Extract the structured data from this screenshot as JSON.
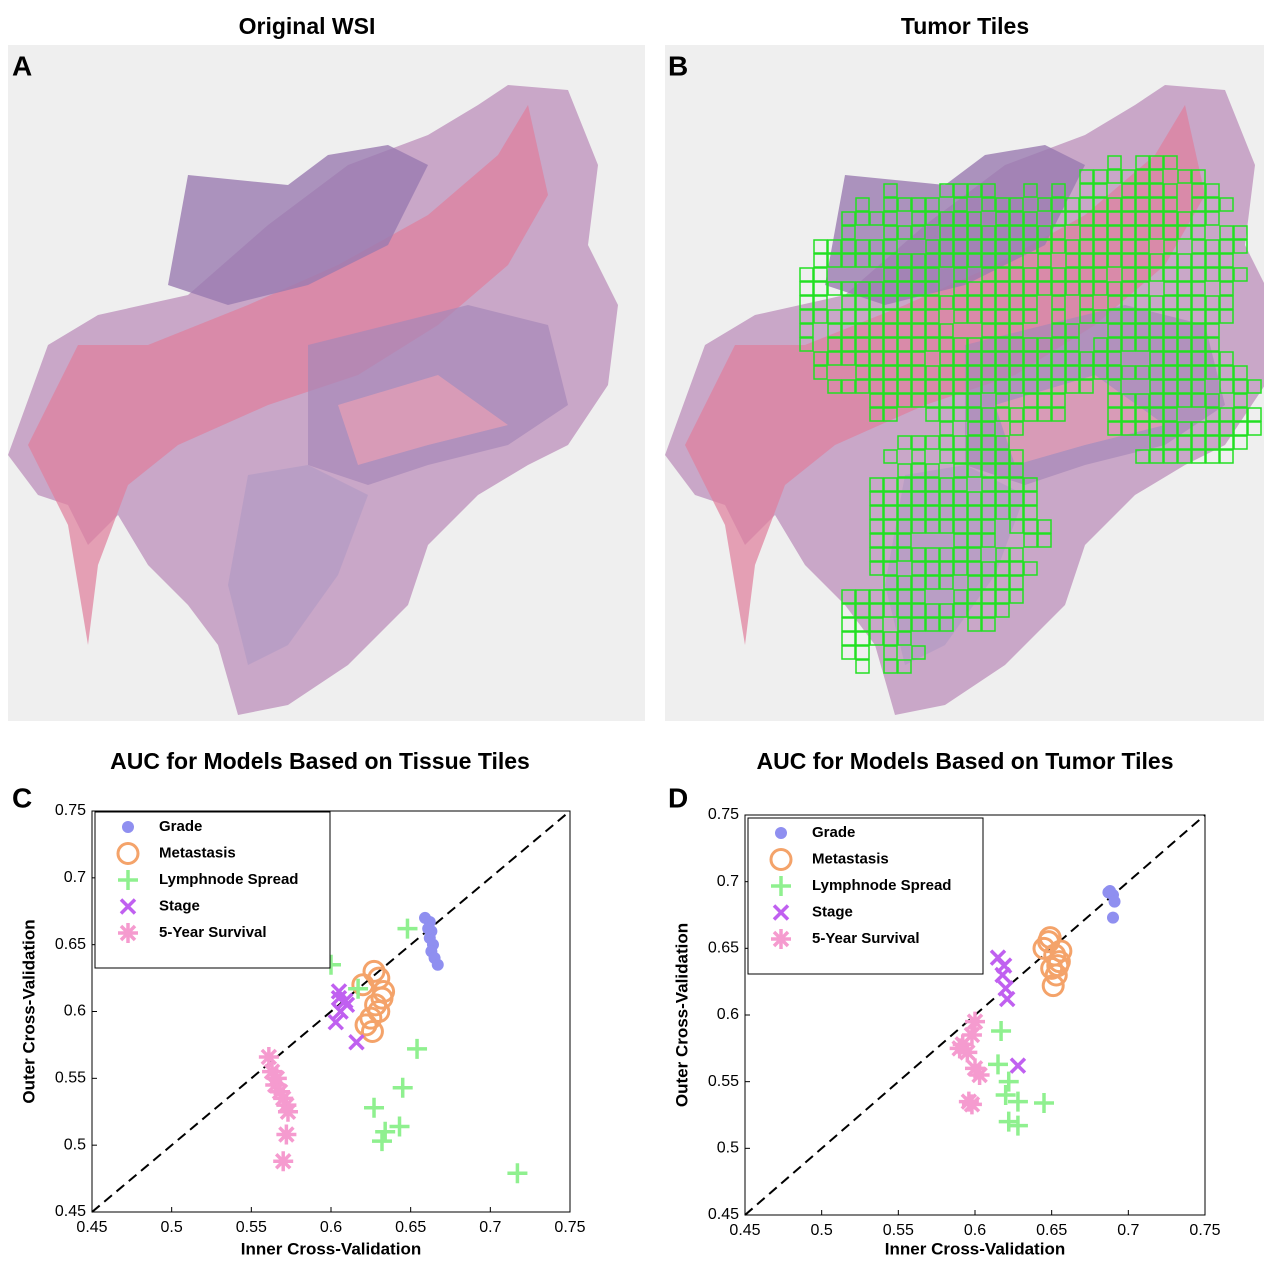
{
  "images": [
    {
      "label": "A",
      "title": "Original WSI"
    },
    {
      "label": "B",
      "title": "Tumor Tiles"
    }
  ],
  "chart_data": [
    {
      "type": "scatter",
      "panel_label": "C",
      "title": "AUC for Models Based on Tissue Tiles",
      "x_label": "Inner Cross-Validation",
      "y_label": "Outer Cross-Validation",
      "xlim": [
        0.45,
        0.75
      ],
      "ylim": [
        0.45,
        0.75
      ],
      "xticks": [
        0.45,
        0.5,
        0.55,
        0.6,
        0.65,
        0.7,
        0.75
      ],
      "yticks": [
        0.45,
        0.5,
        0.55,
        0.6,
        0.65,
        0.7,
        0.75
      ],
      "legend": "upper left",
      "series": [
        {
          "name": "Grade",
          "color": "#8f8ff0",
          "marker": "dot",
          "x": [
            0.659,
            0.662,
            0.663,
            0.662,
            0.664,
            0.663,
            0.665,
            0.667,
            0.661
          ],
          "values": [
            0.67,
            0.667,
            0.66,
            0.655,
            0.65,
            0.645,
            0.64,
            0.635,
            0.662
          ]
        },
        {
          "name": "Metastasis",
          "color": "#f4a36a",
          "marker": "ring",
          "x": [
            0.627,
            0.63,
            0.632,
            0.628,
            0.625,
            0.622,
            0.63,
            0.633,
            0.62,
            0.626
          ],
          "values": [
            0.63,
            0.625,
            0.61,
            0.605,
            0.595,
            0.59,
            0.6,
            0.615,
            0.62,
            0.585
          ]
        },
        {
          "name": "Lymphnode Spread",
          "color": "#8ff08f",
          "marker": "plus",
          "x": [
            0.6,
            0.617,
            0.648,
            0.654,
            0.645,
            0.627,
            0.643,
            0.634,
            0.632,
            0.717
          ],
          "values": [
            0.635,
            0.617,
            0.662,
            0.572,
            0.543,
            0.528,
            0.514,
            0.51,
            0.503,
            0.479
          ]
        },
        {
          "name": "Stage",
          "color": "#c060f0",
          "marker": "cross",
          "x": [
            0.605,
            0.609,
            0.606,
            0.603,
            0.61,
            0.616,
            0.605
          ],
          "values": [
            0.615,
            0.608,
            0.6,
            0.592,
            0.605,
            0.577,
            0.61
          ]
        },
        {
          "name": "5-Year Survival",
          "color": "#f59bcf",
          "marker": "star",
          "x": [
            0.561,
            0.563,
            0.565,
            0.568,
            0.57,
            0.572,
            0.573,
            0.572,
            0.57,
            0.566
          ],
          "values": [
            0.566,
            0.555,
            0.545,
            0.54,
            0.535,
            0.53,
            0.525,
            0.508,
            0.488,
            0.55
          ]
        }
      ]
    },
    {
      "type": "scatter",
      "panel_label": "D",
      "title": "AUC for Models Based on Tumor Tiles",
      "x_label": "Inner Cross-Validation",
      "y_label": "Outer Cross-Validation",
      "xlim": [
        0.45,
        0.75
      ],
      "ylim": [
        0.45,
        0.75
      ],
      "xticks": [
        0.45,
        0.5,
        0.55,
        0.6,
        0.65,
        0.7,
        0.75
      ],
      "yticks": [
        0.45,
        0.5,
        0.55,
        0.6,
        0.65,
        0.7,
        0.75
      ],
      "legend": "upper left",
      "series": [
        {
          "name": "Grade",
          "color": "#8f8ff0",
          "marker": "dot",
          "x": [
            0.687,
            0.69,
            0.691,
            0.69,
            0.688
          ],
          "values": [
            0.692,
            0.69,
            0.685,
            0.673,
            0.693
          ]
        },
        {
          "name": "Metastasis",
          "color": "#f4a36a",
          "marker": "ring",
          "x": [
            0.645,
            0.648,
            0.652,
            0.655,
            0.65,
            0.653,
            0.651,
            0.656,
            0.649,
            0.654
          ],
          "values": [
            0.65,
            0.655,
            0.645,
            0.64,
            0.635,
            0.63,
            0.622,
            0.648,
            0.658,
            0.637
          ]
        },
        {
          "name": "Lymphnode Spread",
          "color": "#8ff08f",
          "marker": "plus",
          "x": [
            0.617,
            0.615,
            0.622,
            0.628,
            0.645,
            0.622,
            0.628,
            0.62
          ],
          "values": [
            0.588,
            0.563,
            0.55,
            0.535,
            0.534,
            0.52,
            0.517,
            0.54
          ]
        },
        {
          "name": "Stage",
          "color": "#c060f0",
          "marker": "cross",
          "x": [
            0.615,
            0.618,
            0.62,
            0.621,
            0.628,
            0.619
          ],
          "values": [
            0.643,
            0.63,
            0.62,
            0.612,
            0.562,
            0.637
          ]
        },
        {
          "name": "5-Year Survival",
          "color": "#f59bcf",
          "marker": "star",
          "x": [
            0.592,
            0.595,
            0.598,
            0.6,
            0.6,
            0.603,
            0.598,
            0.596,
            0.59
          ],
          "values": [
            0.578,
            0.572,
            0.585,
            0.595,
            0.56,
            0.555,
            0.533,
            0.535,
            0.575
          ]
        }
      ]
    }
  ]
}
